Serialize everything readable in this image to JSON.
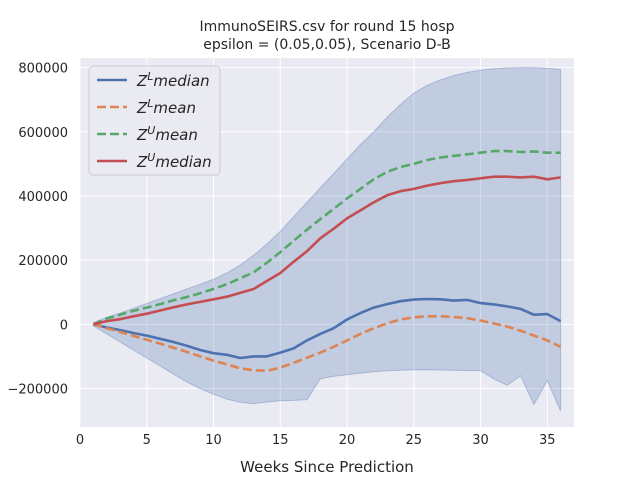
{
  "chart_data": {
    "type": "line",
    "title": "ImmunoSEIRS.csv for round 15 hosp",
    "subtitle": "epsilon = (0.05,0.05), Scenario D-B",
    "xlabel": "Weeks Since Prediction",
    "ylabel": "",
    "xlim": [
      0,
      37
    ],
    "ylim": [
      -320000,
      830000
    ],
    "xticks": [
      0,
      5,
      10,
      15,
      20,
      25,
      30,
      35
    ],
    "yticks": [
      -200000,
      0,
      200000,
      400000,
      600000,
      800000
    ],
    "grid": true,
    "legend_position": "top-left",
    "x": [
      1,
      2,
      3,
      4,
      5,
      6,
      7,
      8,
      9,
      10,
      11,
      12,
      13,
      14,
      15,
      16,
      17,
      18,
      19,
      20,
      21,
      22,
      23,
      24,
      25,
      26,
      27,
      28,
      29,
      30,
      31,
      32,
      33,
      34,
      35,
      36
    ],
    "band": {
      "color": "#4c72b0",
      "upper": [
        5000,
        22000,
        35000,
        50000,
        65000,
        80000,
        95000,
        110000,
        125000,
        140000,
        160000,
        185000,
        215000,
        250000,
        290000,
        335000,
        380000,
        425000,
        470000,
        515000,
        560000,
        600000,
        645000,
        685000,
        720000,
        745000,
        762000,
        775000,
        785000,
        792000,
        797000,
        799000,
        800000,
        800000,
        798000,
        795000
      ],
      "lower": [
        -5000,
        -30000,
        -55000,
        -80000,
        -105000,
        -130000,
        -155000,
        -180000,
        -200000,
        -218000,
        -233000,
        -243000,
        -247000,
        -242000,
        -238000,
        -237000,
        -235000,
        -170000,
        -162000,
        -157000,
        -152000,
        -148000,
        -145000,
        -143000,
        -142000,
        -142000,
        -142500,
        -143000,
        -144000,
        -145000,
        -170000,
        -190000,
        -160000,
        -250000,
        -175000,
        -270000
      ]
    },
    "series": [
      {
        "name": "Z^L median",
        "color": "#4c72b0",
        "dash": "solid",
        "values": [
          0,
          -10000,
          -18000,
          -27000,
          -35000,
          -45000,
          -55000,
          -67000,
          -80000,
          -90000,
          -95000,
          -105000,
          -100000,
          -100000,
          -88000,
          -75000,
          -50000,
          -30000,
          -12000,
          15000,
          35000,
          52000,
          63000,
          72000,
          77000,
          79000,
          78000,
          74000,
          76000,
          66000,
          62000,
          56000,
          48000,
          30000,
          32000,
          10000
        ]
      },
      {
        "name": "Z^L mean",
        "color": "#dd8452",
        "dash": "dashed",
        "values": [
          0,
          -12000,
          -24000,
          -36000,
          -48000,
          -60000,
          -73000,
          -86000,
          -100000,
          -113000,
          -125000,
          -137000,
          -143000,
          -145000,
          -135000,
          -120000,
          -104000,
          -88000,
          -70000,
          -50000,
          -30000,
          -12000,
          3000,
          15000,
          22000,
          25000,
          25000,
          23000,
          19000,
          12000,
          3000,
          -7000,
          -20000,
          -35000,
          -50000,
          -70000
        ]
      },
      {
        "name": "Z^U mean",
        "color": "#55a868",
        "dash": "dashed",
        "values": [
          0,
          18000,
          30000,
          42000,
          52000,
          63000,
          75000,
          85000,
          97000,
          110000,
          125000,
          143000,
          162000,
          192000,
          225000,
          260000,
          295000,
          328000,
          360000,
          392000,
          422000,
          452000,
          475000,
          490000,
          500000,
          512000,
          520000,
          525000,
          530000,
          535000,
          540000,
          540000,
          537000,
          539000,
          535000,
          535000
        ]
      },
      {
        "name": "Z^U median",
        "color": "#c44e52",
        "dash": "solid",
        "values": [
          0,
          10000,
          16000,
          25000,
          33000,
          43000,
          53000,
          62000,
          70000,
          78000,
          86000,
          98000,
          110000,
          135000,
          160000,
          195000,
          228000,
          268000,
          298000,
          330000,
          355000,
          380000,
          402000,
          415000,
          422000,
          432000,
          440000,
          446000,
          450000,
          455000,
          460000,
          460000,
          458000,
          460000,
          452000,
          458000
        ]
      }
    ],
    "legend_labels": [
      {
        "base": "Z",
        "sup": "L",
        "rest": "median"
      },
      {
        "base": "Z",
        "sup": "L",
        "rest": "mean"
      },
      {
        "base": "Z",
        "sup": "U",
        "rest": "mean"
      },
      {
        "base": "Z",
        "sup": "U",
        "rest": "median"
      }
    ]
  }
}
